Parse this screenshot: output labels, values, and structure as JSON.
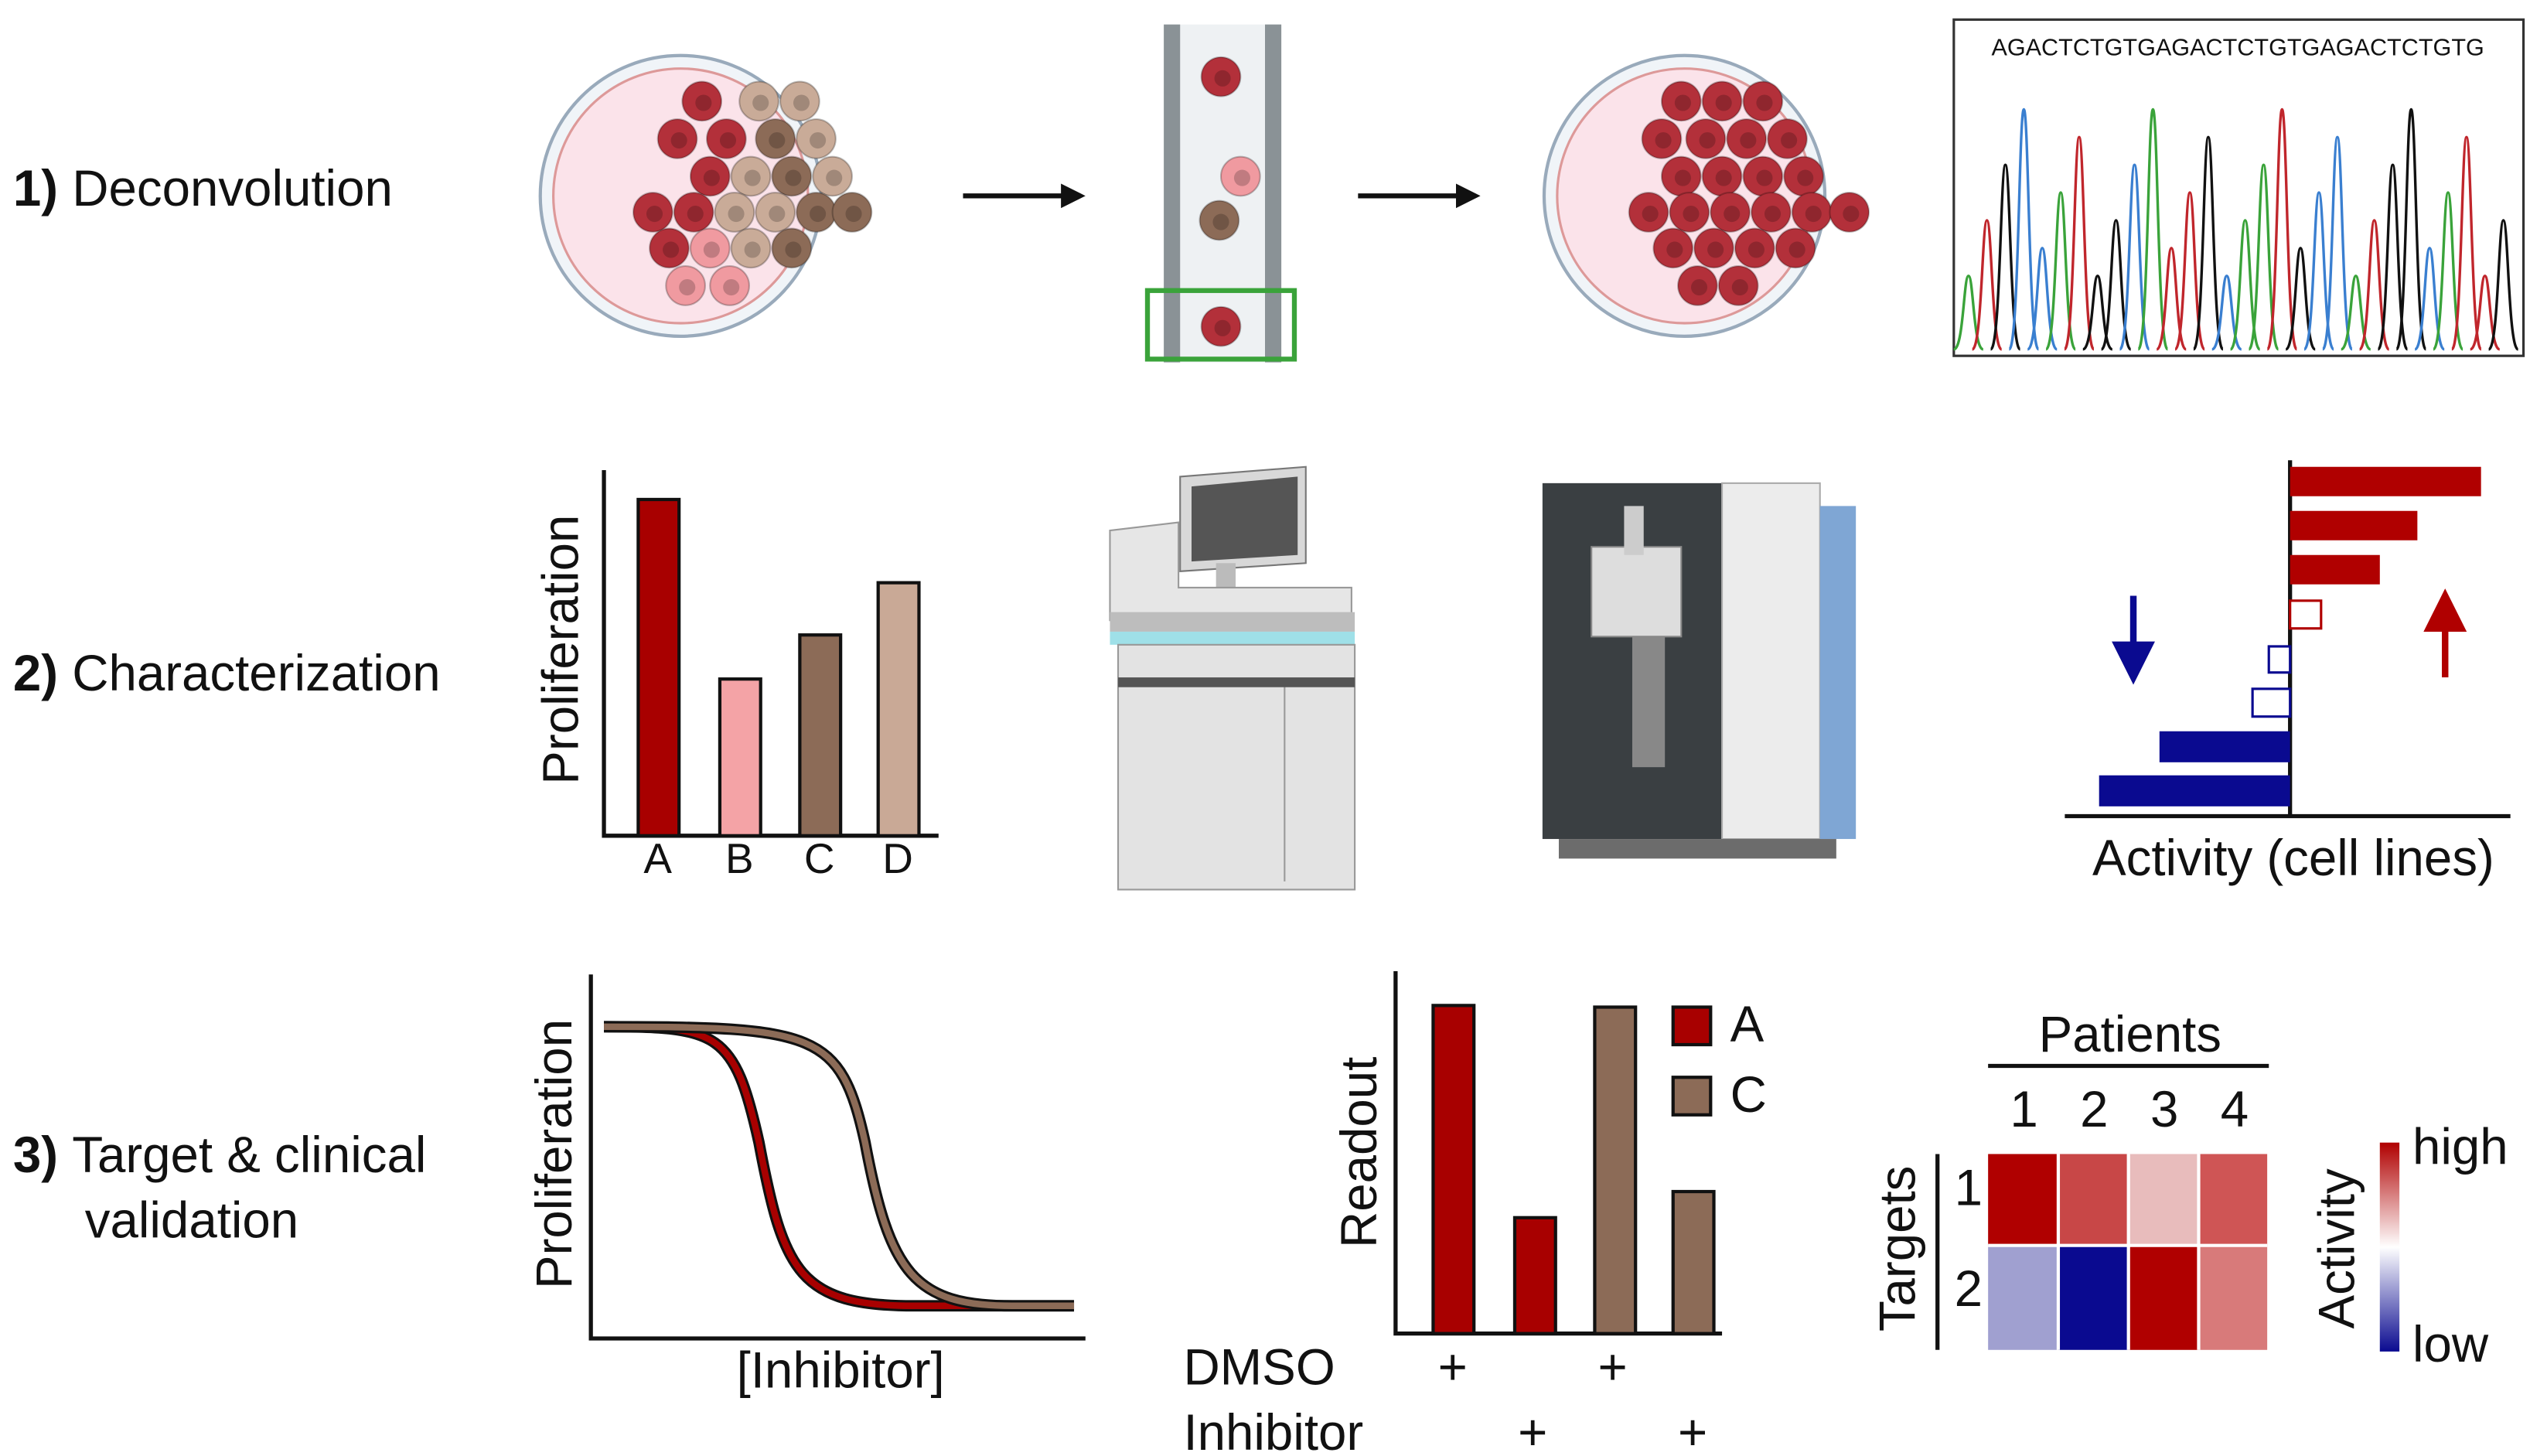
{
  "rows": [
    {
      "number": "1)",
      "label": [
        "Deconvolution"
      ]
    },
    {
      "number": "2)",
      "label": [
        "Characterization"
      ]
    },
    {
      "number": "3)",
      "label": [
        "Target & clinical",
        "validation"
      ]
    }
  ],
  "sequencing": {
    "sequence": "AGACTCTGTGAGACTCTGTGAGACTCTGTG"
  },
  "proliferation_bars": {
    "y_label": "Proliferation",
    "categories": [
      "A",
      "B",
      "C",
      "D"
    ]
  },
  "activity_chart": {
    "x_label": "Activity (cell lines)"
  },
  "dose_response": {
    "y_label": "Proliferation",
    "x_label": "[Inhibitor]"
  },
  "readout_chart": {
    "y_label": "Readout",
    "legend": [
      "A",
      "C"
    ],
    "conditions": [
      "DMSO",
      "Inhibitor"
    ],
    "dmso_marks": [
      "+",
      "+"
    ],
    "inhibitor_marks": [
      "+",
      "+"
    ]
  },
  "heatmap": {
    "column_title": "Patients",
    "columns": [
      "1",
      "2",
      "3",
      "4"
    ],
    "row_title": "Targets",
    "rows": [
      "1",
      "2"
    ],
    "legend_title": "Activity",
    "legend_high": "high",
    "legend_low": "low"
  }
}
